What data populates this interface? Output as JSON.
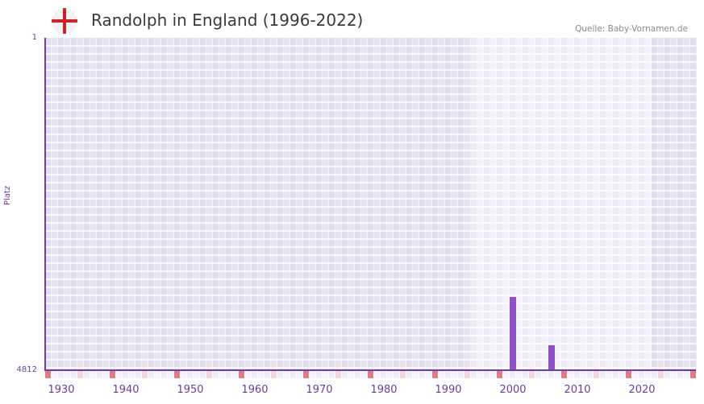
{
  "header": {
    "title": "Randolph in England (1996-2022)",
    "flag_icon": "england-flag-icon",
    "source": "Quelle: Baby-Vornamen.de"
  },
  "colors": {
    "accent": "#6a3fa0",
    "bar": "#8e52c8",
    "grid_dark": "#e3dfee",
    "grid_light": "#f0ecfa",
    "decade_marker": "#e57a80",
    "half_decade_marker": "#f6d6de"
  },
  "chart_data": {
    "type": "bar",
    "title": "Randolph in England (1996-2022)",
    "xlabel": "",
    "ylabel": "Platz",
    "y_inverted": true,
    "ylim": [
      1,
      4812
    ],
    "xlim": [
      1928,
      2028
    ],
    "x_ticks": [
      "1930",
      "1940",
      "1950",
      "1960",
      "1970",
      "1980",
      "1990",
      "2000",
      "2010",
      "2020"
    ],
    "y_ticks": [
      "1",
      "4812"
    ],
    "data_range_highlight": [
      1994,
      2021
    ],
    "categories": [
      "2000",
      "2006"
    ],
    "series": [
      {
        "name": "Platz",
        "values": [
          3750,
          4450
        ]
      }
    ],
    "grid": true,
    "legend": null
  },
  "axis": {
    "ylabel": "Platz",
    "ytick_top": "1",
    "ytick_bottom": "4812",
    "xticks": [
      {
        "label": "1930",
        "year": 1930
      },
      {
        "label": "1940",
        "year": 1940
      },
      {
        "label": "1950",
        "year": 1950
      },
      {
        "label": "1960",
        "year": 1960
      },
      {
        "label": "1970",
        "year": 1970
      },
      {
        "label": "1980",
        "year": 1980
      },
      {
        "label": "1990",
        "year": 1990
      },
      {
        "label": "2000",
        "year": 2000
      },
      {
        "label": "2010",
        "year": 2010
      },
      {
        "label": "2020",
        "year": 2020
      }
    ]
  }
}
